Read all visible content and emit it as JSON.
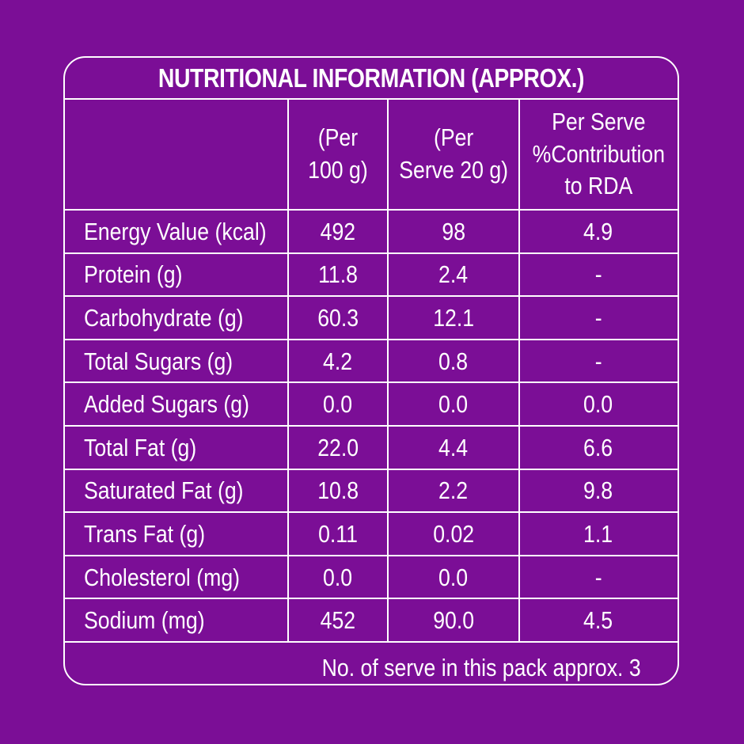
{
  "title": "NUTRITIONAL INFORMATION (APPROX.)",
  "headers": [
    "",
    "(Per\n100 g)",
    "(Per\nServe 20 g)",
    "Per Serve\n%Contribution\nto RDA"
  ],
  "rows": [
    [
      "Energy Value (kcal)",
      "492",
      "98",
      "4.9"
    ],
    [
      "Protein (g)",
      "11.8",
      "2.4",
      "-"
    ],
    [
      "Carbohydrate (g)",
      "60.3",
      "12.1",
      "-"
    ],
    [
      "Total Sugars (g)",
      "4.2",
      "0.8",
      "-"
    ],
    [
      "Added Sugars (g)",
      "0.0",
      "0.0",
      "0.0"
    ],
    [
      "Total Fat (g)",
      "22.0",
      "4.4",
      "6.6"
    ],
    [
      "Saturated Fat (g)",
      "10.8",
      "2.2",
      "9.8"
    ],
    [
      "Trans Fat (g)",
      "0.11",
      "0.02",
      "1.1"
    ],
    [
      "Cholesterol (mg)",
      "0.0",
      "0.0",
      "-"
    ],
    [
      "Sodium (mg)",
      "452",
      "90.0",
      "4.5"
    ]
  ],
  "footer": "No. of serve in this pack approx. 3",
  "colors": {
    "background": "#7b0e96",
    "text": "#ffffff",
    "lines": "#ffffff"
  }
}
